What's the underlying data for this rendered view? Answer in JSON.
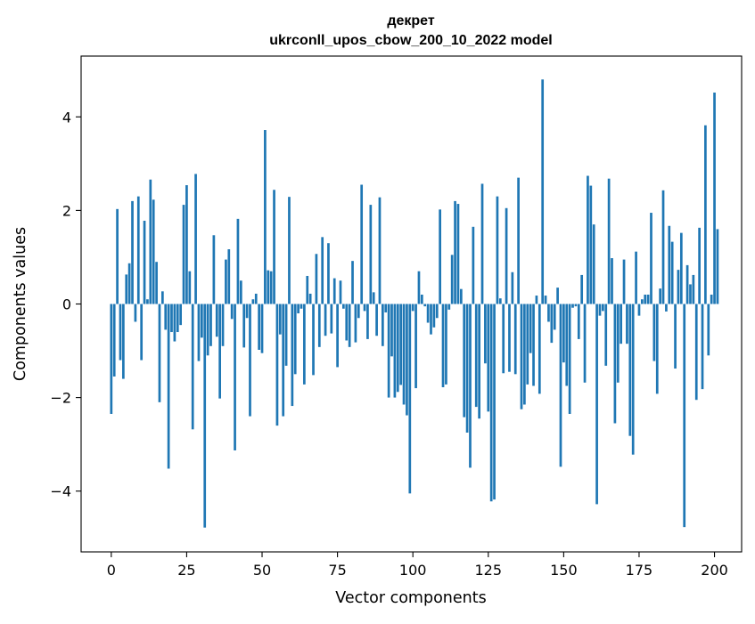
{
  "chart_data": {
    "type": "bar",
    "title_line1": "декрет",
    "title_line2": "ukrconll_upos_cbow_200_10_2022 model",
    "xlabel": "Vector components",
    "ylabel": "Components values",
    "xlim": [
      -10,
      209
    ],
    "ylim": [
      -5.3,
      5.3
    ],
    "xticks": [
      0,
      25,
      50,
      75,
      100,
      125,
      150,
      175,
      200
    ],
    "xtick_labels": [
      "0",
      "25",
      "50",
      "75",
      "100",
      "125",
      "150",
      "175",
      "200"
    ],
    "yticks": [
      -4,
      -2,
      0,
      2,
      4
    ],
    "ytick_labels": [
      "−4",
      "−2",
      "0",
      "2",
      "4"
    ],
    "grid": false,
    "bar_color": "#1f77b4",
    "values": [
      -2.35,
      -1.55,
      2.03,
      -1.2,
      -1.6,
      0.63,
      0.87,
      2.2,
      -0.38,
      2.3,
      -1.2,
      1.78,
      0.1,
      2.66,
      2.23,
      0.9,
      -2.1,
      0.27,
      -0.55,
      -3.52,
      -0.6,
      -0.8,
      -0.6,
      -0.45,
      2.12,
      2.54,
      0.7,
      -2.68,
      2.78,
      -1.22,
      -0.72,
      -4.78,
      -1.1,
      -0.9,
      1.47,
      -0.7,
      -2.02,
      -0.9,
      0.95,
      1.17,
      -0.32,
      -3.13,
      1.82,
      0.5,
      -0.93,
      -0.3,
      -2.4,
      0.1,
      0.22,
      -0.98,
      -1.05,
      3.72,
      0.72,
      0.7,
      2.44,
      -2.6,
      -0.65,
      -2.4,
      -1.32,
      2.29,
      -2.18,
      -1.5,
      -0.2,
      -0.1,
      -1.72,
      0.6,
      0.22,
      -1.52,
      1.07,
      -0.92,
      1.43,
      -0.68,
      1.3,
      -0.63,
      0.55,
      -1.35,
      0.5,
      -0.1,
      -0.78,
      -0.92,
      0.92,
      -0.82,
      -0.3,
      2.55,
      -0.15,
      -0.75,
      2.12,
      0.25,
      -0.68,
      2.28,
      -0.9,
      -0.18,
      -2.0,
      -1.12,
      -2.0,
      -1.88,
      -1.73,
      -2.15,
      -2.38,
      -4.05,
      -0.15,
      -1.8,
      0.7,
      0.2,
      -0.05,
      -0.4,
      -0.65,
      -0.5,
      -0.3,
      2.02,
      -1.78,
      -1.72,
      -0.12,
      1.05,
      2.2,
      2.14,
      0.32,
      -2.42,
      -2.75,
      -3.5,
      1.65,
      -2.2,
      -2.45,
      2.57,
      -1.27,
      -2.3,
      -4.22,
      -4.18,
      2.3,
      0.12,
      -1.48,
      2.05,
      -1.45,
      0.68,
      -1.5,
      2.7,
      -2.25,
      -2.15,
      -1.72,
      -1.05,
      -1.75,
      0.18,
      -1.92,
      4.8,
      0.18,
      -0.38,
      -0.83,
      -0.55,
      0.35,
      -3.48,
      -1.25,
      -1.75,
      -2.35,
      -0.08,
      -0.05,
      -0.75,
      0.62,
      -1.68,
      2.74,
      2.53,
      1.7,
      -4.28,
      -0.25,
      -0.15,
      -1.32,
      2.68,
      0.98,
      -2.55,
      -1.68,
      -0.85,
      0.95,
      -0.85,
      -2.82,
      -3.22,
      1.12,
      -0.25,
      0.1,
      0.2,
      0.2,
      1.95,
      -1.22,
      -1.92,
      0.33,
      2.43,
      -0.16,
      1.67,
      1.33,
      -1.38,
      0.73,
      1.52,
      -4.77,
      0.83,
      0.42,
      0.62,
      -2.05,
      1.63,
      -1.82,
      3.82,
      -1.1,
      0.2,
      4.52,
      1.6
    ]
  }
}
